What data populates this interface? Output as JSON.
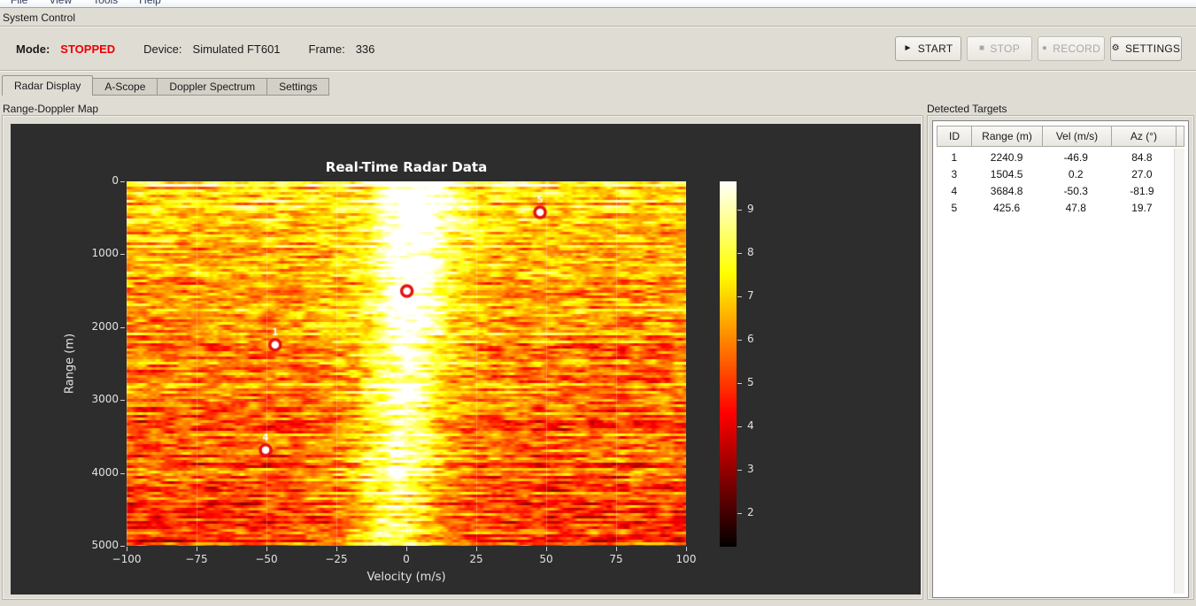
{
  "menu": {
    "items": [
      {
        "label": "File"
      },
      {
        "label": "View"
      },
      {
        "label": "Tools"
      },
      {
        "label": "Help"
      }
    ]
  },
  "system_control": {
    "title": "System Control",
    "mode_label": "Mode:",
    "mode_value": "STOPPED",
    "device_label": "Device:",
    "device_value": "Simulated FT601",
    "frame_label": "Frame:",
    "frame_value": "336",
    "icons": {
      "play": "►",
      "stop": "■",
      "record": "●",
      "gear": "⚙"
    },
    "buttons": {
      "start": "START",
      "stop": "STOP",
      "record": "RECORD",
      "settings": "SETTINGS"
    }
  },
  "tabs": [
    {
      "label": "Radar Display",
      "active": true
    },
    {
      "label": "A-Scope",
      "active": false
    },
    {
      "label": "Doppler Spectrum",
      "active": false
    },
    {
      "label": "Settings",
      "active": false
    }
  ],
  "left_panel": {
    "title": "Range-Doppler Map"
  },
  "targets_panel": {
    "title": "Detected Targets",
    "columns": [
      "ID",
      "Range (m)",
      "Vel (m/s)",
      "Az (°)"
    ],
    "rows": [
      [
        "1",
        "2240.9",
        "-46.9",
        "84.8"
      ],
      [
        "3",
        "1504.5",
        "0.2",
        "27.0"
      ],
      [
        "4",
        "3684.8",
        "-50.3",
        "-81.9"
      ],
      [
        "5",
        "425.6",
        "47.8",
        "19.7"
      ]
    ]
  },
  "chart_data": {
    "type": "heatmap",
    "title": "Real-Time Radar Data",
    "xlabel": "Velocity (m/s)",
    "ylabel": "Range (m)",
    "xlim": [
      -100,
      100
    ],
    "ylim": [
      0,
      5000
    ],
    "x_ticks": [
      -100,
      -75,
      -50,
      -25,
      0,
      25,
      50,
      75,
      100
    ],
    "y_ticks": [
      0,
      1000,
      2000,
      3000,
      4000,
      5000
    ],
    "grid": true,
    "colormap": "hot",
    "colorbar_ticks": [
      2,
      3,
      4,
      5,
      6,
      7,
      8,
      9
    ],
    "colorbar_value_range": [
      1.2,
      9.7
    ],
    "clutter_band": {
      "velocity_center_top": 4,
      "velocity_center_bottom": -5,
      "velocity_halfwidth": 12
    },
    "markers": [
      {
        "id": "1",
        "velocity": -46.9,
        "range": 2240.9
      },
      {
        "id": "3",
        "velocity": 0.2,
        "range": 1504.5
      },
      {
        "id": "4",
        "velocity": -50.3,
        "range": 3684.8
      },
      {
        "id": "5",
        "velocity": 47.8,
        "range": 425.6
      }
    ],
    "colors": {
      "marker_red": "#e51212",
      "plot_bg": "#2d2d2d",
      "text": "#e2e2e2"
    }
  }
}
